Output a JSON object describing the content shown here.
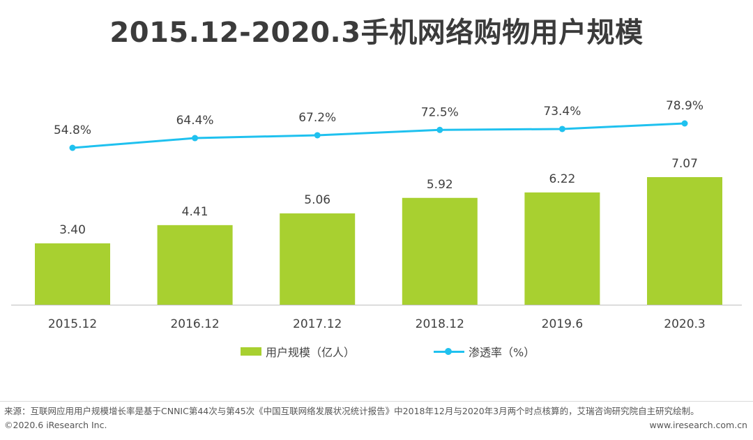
{
  "title": "2015.12-2020.3手机网络购物用户规模",
  "colors": {
    "bar": "#a8d030",
    "line": "#1fc1ef",
    "text": "#404040",
    "axis": "#bfbfbf"
  },
  "chart_data": {
    "type": "bar",
    "categories": [
      "2015.12",
      "2016.12",
      "2017.12",
      "2018.12",
      "2019.6",
      "2020.3"
    ],
    "series": [
      {
        "name": "用户规模（亿人）",
        "type": "bar",
        "values": [
          3.4,
          4.41,
          5.06,
          5.92,
          6.22,
          7.07
        ],
        "labels": [
          "3.40",
          "4.41",
          "5.06",
          "5.92",
          "6.22",
          "7.07"
        ]
      },
      {
        "name": "渗透率（%）",
        "type": "line",
        "values": [
          54.8,
          64.4,
          67.2,
          72.5,
          73.4,
          78.9
        ],
        "labels": [
          "54.8%",
          "64.4%",
          "67.2%",
          "72.5%",
          "73.4%",
          "78.9%"
        ]
      }
    ],
    "legend_position": "bottom",
    "grid": false
  },
  "legend": {
    "bar_label": "用户规模（亿人）",
    "line_label": "渗透率（%）"
  },
  "footer": {
    "source": "来源：互联网应用用户规模增长率是基于CNNIC第44次与第45次《中国互联网络发展状况统计报告》中2018年12月与2020年3月两个时点核算的，艾瑞咨询研究院自主研究绘制。",
    "copyright": "©2020.6 iResearch Inc.",
    "website": "www.iresearch.com.cn"
  }
}
